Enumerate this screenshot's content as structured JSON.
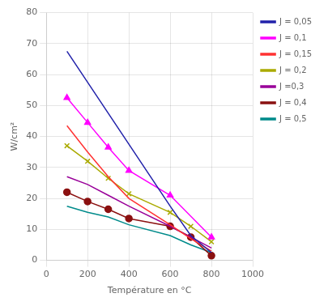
{
  "chart_data": {
    "type": "line",
    "xlabel": "Température en °C",
    "ylabel": "W/cm²",
    "xlim": [
      0,
      1000
    ],
    "ylim": [
      0,
      80
    ],
    "xticks": [
      0,
      200,
      400,
      600,
      800,
      1000
    ],
    "yticks": [
      0,
      10,
      20,
      30,
      40,
      50,
      60,
      70,
      80
    ],
    "grid": true,
    "legend": "right",
    "series": [
      {
        "name": "J = 0,05",
        "color": "#2222AA",
        "marker": "none",
        "x": [
          100,
          200,
          300,
          400,
          500,
          600,
          700,
          800
        ],
        "values": [
          67.5,
          57.5,
          47.5,
          37.5,
          27.5,
          17.5,
          8.0,
          2.5
        ]
      },
      {
        "name": "J = 0,1",
        "color": "#FF00FF",
        "marker": "triangle",
        "x": [
          100,
          200,
          300,
          400,
          600,
          800
        ],
        "values": [
          52.5,
          44.5,
          36.5,
          29.0,
          21.0,
          7.5
        ]
      },
      {
        "name": "J = 0,15",
        "color": "#FF3333",
        "marker": "none",
        "x": [
          100,
          200,
          300,
          400,
          600,
          700,
          800
        ],
        "values": [
          43.5,
          35.0,
          27.0,
          20.0,
          11.5,
          7.0,
          3.0
        ]
      },
      {
        "name": "J = 0,2",
        "color": "#AAAA00",
        "marker": "x",
        "x": [
          100,
          200,
          300,
          400,
          600,
          700,
          800
        ],
        "values": [
          37.0,
          32.0,
          26.5,
          21.5,
          15.5,
          11.0,
          6.0
        ]
      },
      {
        "name": "J =0,3",
        "color": "#990099",
        "marker": "none",
        "x": [
          100,
          200,
          300,
          400,
          600,
          700,
          800
        ],
        "values": [
          27.0,
          24.5,
          21.0,
          17.5,
          11.0,
          7.5,
          4.0
        ]
      },
      {
        "name": "J = 0,4",
        "color": "#8B1010",
        "marker": "circle",
        "x": [
          100,
          200,
          300,
          400,
          600,
          700,
          800
        ],
        "values": [
          22.0,
          19.0,
          16.5,
          13.5,
          11.0,
          7.5,
          1.5
        ]
      },
      {
        "name": "J = 0,5",
        "color": "#008B8B",
        "marker": "none",
        "x": [
          100,
          200,
          300,
          400,
          600,
          700,
          800
        ],
        "values": [
          17.5,
          15.5,
          14.0,
          11.5,
          8.0,
          5.0,
          2.5
        ]
      }
    ]
  }
}
